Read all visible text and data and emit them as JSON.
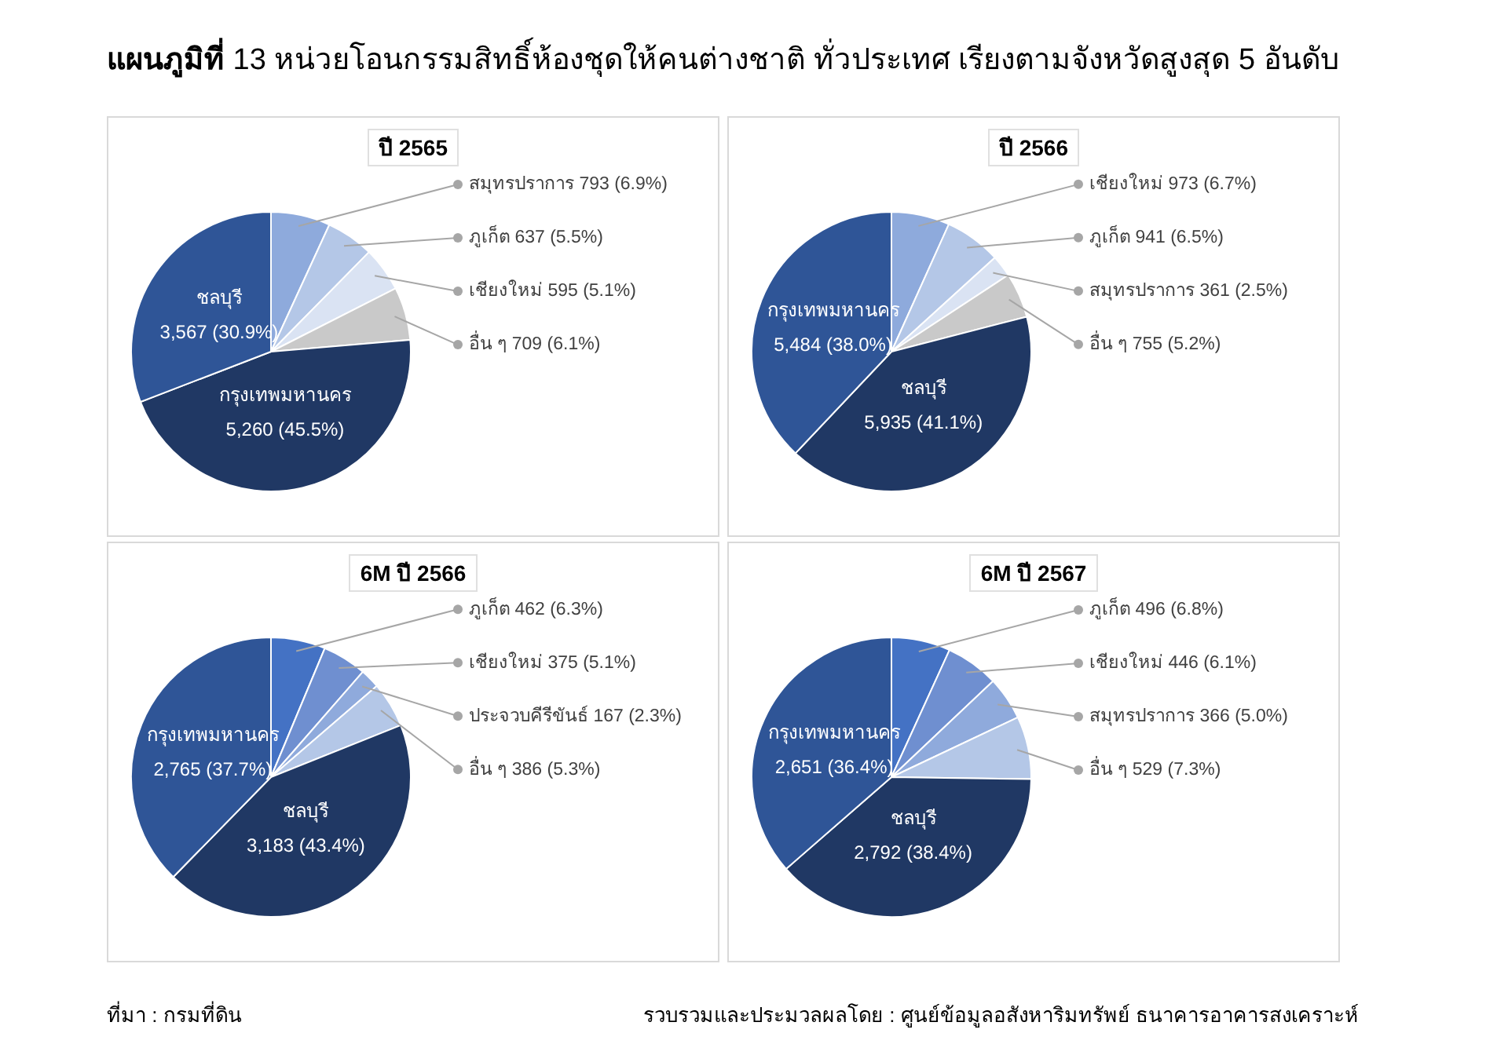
{
  "chart_data": [
    {
      "type": "pie",
      "title": "ปี 2565",
      "categories": [
        "สมุทรปราการ",
        "ภูเก็ต",
        "เชียงใหม่",
        "อื่น ๆ",
        "กรุงเทพมหานคร",
        "ชลบุรี"
      ],
      "values": [
        793,
        637,
        595,
        709,
        5260,
        3567
      ],
      "value_labels": [
        "793 (6.9%)",
        "637 (5.5%)",
        "595 (5.1%)",
        "709 (6.1%)",
        "5,260 (45.5%)",
        "3,567 (30.9%)"
      ],
      "colors": [
        "#8eaadc",
        "#b4c7e7",
        "#dae3f3",
        "#c9c9c9",
        "#203864",
        "#2f5597"
      ],
      "legend": false
    },
    {
      "type": "pie",
      "title": "ปี 2566",
      "categories": [
        "เชียงใหม่",
        "ภูเก็ต",
        "สมุทรปราการ",
        "อื่น ๆ",
        "ชลบุรี",
        "กรุงเทพมหานคร"
      ],
      "values": [
        973,
        941,
        361,
        755,
        5935,
        5484
      ],
      "value_labels": [
        "973 (6.7%)",
        "941 (6.5%)",
        "361 (2.5%)",
        "755 (5.2%)",
        "5,935 (41.1%)",
        "5,484 (38.0%)"
      ],
      "colors": [
        "#8eaadc",
        "#b4c7e7",
        "#dae3f3",
        "#c9c9c9",
        "#203864",
        "#2f5597"
      ],
      "legend": false
    },
    {
      "type": "pie",
      "title": "6M ปี 2566",
      "categories": [
        "ภูเก็ต",
        "เชียงใหม่",
        "ประจวบคีรีขันธ์",
        "อื่น ๆ",
        "ชลบุรี",
        "กรุงเทพมหานคร"
      ],
      "values": [
        462,
        375,
        167,
        386,
        3183,
        2765
      ],
      "value_labels": [
        "462 (6.3%)",
        "375 (5.1%)",
        "167 (2.3%)",
        "386 (5.3%)",
        "3,183 (43.4%)",
        "2,765 (37.7%)"
      ],
      "colors": [
        "#4472c4",
        "#6f8fd0",
        "#8faadc",
        "#b4c7e7",
        "#203864",
        "#2f5597"
      ],
      "legend": false
    },
    {
      "type": "pie",
      "title": "6M ปี 2567",
      "categories": [
        "ภูเก็ต",
        "เชียงใหม่",
        "สมุทรปราการ",
        "อื่น ๆ",
        "ชลบุรี",
        "กรุงเทพมหานคร"
      ],
      "values": [
        496,
        446,
        366,
        529,
        2792,
        2651
      ],
      "value_labels": [
        "496 (6.8%)",
        "446 (6.1%)",
        "366 (5.0%)",
        "529 (7.3%)",
        "2,792 (38.4%)",
        "2,651 (36.4%)"
      ],
      "colors": [
        "#4472c4",
        "#6f8fd0",
        "#8faadc",
        "#b4c7e7",
        "#203864",
        "#2f5597"
      ],
      "legend": false
    },
    {
      "type": "other",
      "title": "แผนภูมิที่ 13 หน่วยโอนกรรมสิทธิ์ห้องชุดให้คนต่างชาติ ทั่วประเทศ เรียงตามจังหวัดสูงสุด 5 อันดับ",
      "annotations": [
        "ที่มา : กรมที่ดิน",
        "รวบรวมและประมวลผลโดย : ศูนย์ข้อมูลอสังหาริมทรัพย์ ธนาคารอาคารสงเคราะห์"
      ]
    }
  ]
}
